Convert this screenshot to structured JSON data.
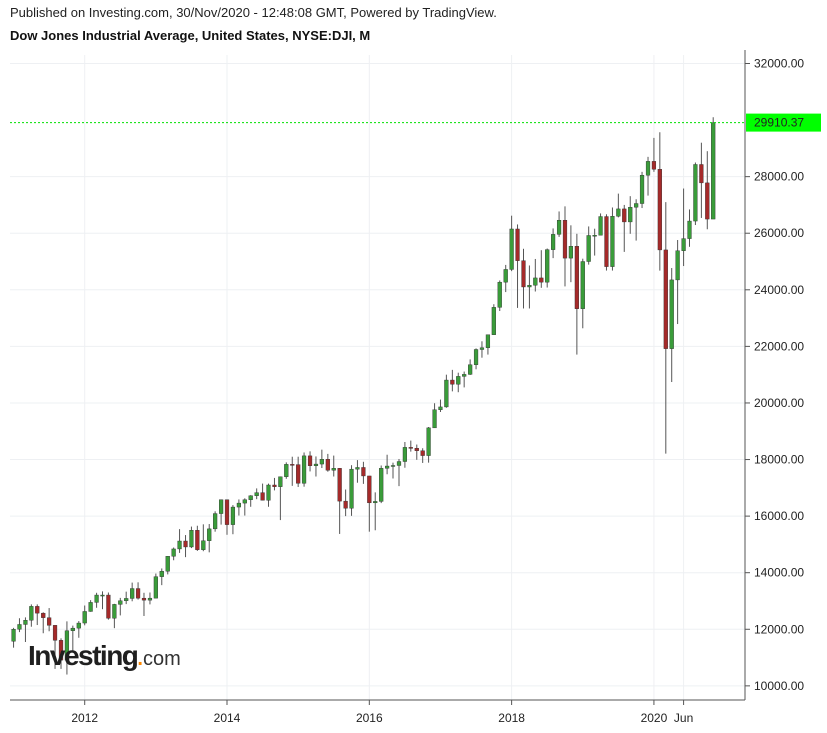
{
  "header": {
    "published": "Published on Investing.com, 30/Nov/2020 - 12:48:08 GMT, Powered by TradingView.",
    "title": "Dow Jones Industrial Average, United States, NYSE:DJI, M"
  },
  "logo": {
    "main": "Investing",
    "dot": ".",
    "suffix": "com"
  },
  "colors": {
    "up": "#3a9c3a",
    "down": "#a52a2a",
    "price_line": "#00e000",
    "price_label_bg": "#00ff00",
    "wick": "#555555",
    "grid": "#eef0f3"
  },
  "chart_data": {
    "type": "candlestick",
    "title": "Dow Jones Industrial Average, United States, NYSE:DJI, M",
    "interval": "M",
    "y_ticks": [
      "32000.00",
      "28000.00",
      "26000.00",
      "24000.00",
      "22000.00",
      "20000.00",
      "18000.00",
      "16000.00",
      "14000.00",
      "12000.00",
      "10000.00"
    ],
    "y_tick_values": [
      32000,
      28000,
      26000,
      24000,
      22000,
      20000,
      18000,
      16000,
      14000,
      12000,
      10000
    ],
    "x_ticks": [
      "2012",
      "2014",
      "2016",
      "2018",
      "2020",
      "Jun"
    ],
    "x_tick_values": [
      2012.0,
      2014.0,
      2016.0,
      2018.0,
      2020.0,
      2020.417
    ],
    "ylim": [
      9500,
      32300
    ],
    "xlim": [
      2010.95,
      2021.28
    ],
    "last_price": 29910.37,
    "last_price_label": "29910.37",
    "grid": true,
    "candles": [
      [
        2011.0,
        11577,
        12000,
        11350,
        12050
      ],
      [
        2011.083,
        12000,
        12170,
        11900,
        12390
      ],
      [
        2011.167,
        12170,
        12320,
        11550,
        12420
      ],
      [
        2011.25,
        12320,
        12810,
        12090,
        12880
      ],
      [
        2011.333,
        12810,
        12570,
        12150,
        12880
      ],
      [
        2011.417,
        12570,
        12410,
        11860,
        12600
      ],
      [
        2011.5,
        12410,
        12140,
        11930,
        12750
      ],
      [
        2011.583,
        12140,
        11610,
        10600,
        12140
      ],
      [
        2011.667,
        11610,
        10910,
        10600,
        11680
      ],
      [
        2011.75,
        10910,
        11950,
        10400,
        12280
      ],
      [
        2011.833,
        11950,
        12040,
        11230,
        12130
      ],
      [
        2011.917,
        12040,
        12220,
        11700,
        12290
      ],
      [
        2012.0,
        12220,
        12630,
        12140,
        12840
      ],
      [
        2012.083,
        12630,
        12950,
        12620,
        13030
      ],
      [
        2012.167,
        12950,
        13210,
        12760,
        13290
      ],
      [
        2012.25,
        13210,
        13210,
        12710,
        13340
      ],
      [
        2012.333,
        13210,
        12390,
        12340,
        13300
      ],
      [
        2012.417,
        12390,
        12880,
        12040,
        12900
      ],
      [
        2012.5,
        12880,
        13010,
        12490,
        13110
      ],
      [
        2012.583,
        13010,
        13090,
        12890,
        13330
      ],
      [
        2012.667,
        13090,
        13440,
        12990,
        13650
      ],
      [
        2012.75,
        13440,
        13100,
        13050,
        13660
      ],
      [
        2012.833,
        13100,
        13030,
        12470,
        13290
      ],
      [
        2012.917,
        13030,
        13100,
        12880,
        13300
      ],
      [
        2013.0,
        13100,
        13860,
        13100,
        13970
      ],
      [
        2013.083,
        13860,
        14050,
        13560,
        14150
      ],
      [
        2013.167,
        14050,
        14580,
        13940,
        14590
      ],
      [
        2013.25,
        14580,
        14840,
        14440,
        14890
      ],
      [
        2013.333,
        14840,
        15120,
        14700,
        15540
      ],
      [
        2013.417,
        15120,
        14910,
        14550,
        15330
      ],
      [
        2013.5,
        14910,
        15500,
        14870,
        15630
      ],
      [
        2013.583,
        15500,
        14810,
        14770,
        15660
      ],
      [
        2013.667,
        14810,
        15130,
        14760,
        15710
      ],
      [
        2013.75,
        15130,
        15550,
        14720,
        15720
      ],
      [
        2013.833,
        15550,
        16090,
        15450,
        16170
      ],
      [
        2013.917,
        16090,
        16580,
        15700,
        16590
      ],
      [
        2014.0,
        16580,
        15700,
        15340,
        16590
      ],
      [
        2014.083,
        15700,
        16320,
        15360,
        16390
      ],
      [
        2014.167,
        16320,
        16460,
        16020,
        16590
      ],
      [
        2014.25,
        16460,
        16580,
        16020,
        16630
      ],
      [
        2014.333,
        16580,
        16720,
        16330,
        16740
      ],
      [
        2014.417,
        16720,
        16830,
        16600,
        16980
      ],
      [
        2014.5,
        16830,
        16560,
        16560,
        17150
      ],
      [
        2014.583,
        16560,
        17100,
        16330,
        17150
      ],
      [
        2014.667,
        17100,
        17040,
        16910,
        17350
      ],
      [
        2014.75,
        17040,
        17390,
        15860,
        17400
      ],
      [
        2014.833,
        17390,
        17830,
        17320,
        17900
      ],
      [
        2014.917,
        17830,
        17820,
        17070,
        18100
      ],
      [
        2015.0,
        17820,
        17160,
        17030,
        18100
      ],
      [
        2015.083,
        17160,
        18130,
        17040,
        18250
      ],
      [
        2015.167,
        18130,
        17780,
        17580,
        18290
      ],
      [
        2015.25,
        17780,
        17840,
        17400,
        18110
      ],
      [
        2015.333,
        17840,
        18010,
        17700,
        18350
      ],
      [
        2015.417,
        18010,
        17620,
        17570,
        18200
      ],
      [
        2015.5,
        17620,
        17690,
        17400,
        18140
      ],
      [
        2015.583,
        17690,
        16530,
        15370,
        17700
      ],
      [
        2015.667,
        16530,
        16280,
        16000,
        16940
      ],
      [
        2015.75,
        16280,
        17660,
        16010,
        17800
      ],
      [
        2015.833,
        17660,
        17720,
        17180,
        17980
      ],
      [
        2015.917,
        17720,
        17420,
        17140,
        17920
      ],
      [
        2016.0,
        17420,
        16470,
        15450,
        17420
      ],
      [
        2016.083,
        16470,
        16520,
        15500,
        16840
      ],
      [
        2016.167,
        16520,
        17690,
        16460,
        17790
      ],
      [
        2016.25,
        17690,
        17770,
        17480,
        18170
      ],
      [
        2016.333,
        17770,
        17790,
        17330,
        17890
      ],
      [
        2016.417,
        17790,
        17930,
        17060,
        18020
      ],
      [
        2016.5,
        17930,
        18430,
        17710,
        18620
      ],
      [
        2016.583,
        18430,
        18400,
        18280,
        18670
      ],
      [
        2016.667,
        18400,
        18310,
        17990,
        18530
      ],
      [
        2016.75,
        18310,
        18140,
        17880,
        18400
      ],
      [
        2016.833,
        18140,
        19120,
        17890,
        19150
      ],
      [
        2016.917,
        19120,
        19760,
        19120,
        19990
      ],
      [
        2017.0,
        19760,
        19860,
        19680,
        20120
      ],
      [
        2017.083,
        19860,
        20810,
        19830,
        21000
      ],
      [
        2017.167,
        20810,
        20660,
        20410,
        21170
      ],
      [
        2017.25,
        20660,
        20940,
        20380,
        21070
      ],
      [
        2017.333,
        20940,
        21010,
        20550,
        21110
      ],
      [
        2017.417,
        21010,
        21350,
        20990,
        21540
      ],
      [
        2017.5,
        21350,
        21890,
        21190,
        21930
      ],
      [
        2017.583,
        21890,
        21950,
        21600,
        22180
      ],
      [
        2017.667,
        21950,
        22410,
        21710,
        22420
      ],
      [
        2017.75,
        22410,
        23380,
        22410,
        23490
      ],
      [
        2017.833,
        23380,
        24270,
        23250,
        24330
      ],
      [
        2017.917,
        24270,
        24720,
        23920,
        24880
      ],
      [
        2018.0,
        24720,
        26150,
        24660,
        26620
      ],
      [
        2018.083,
        26150,
        25030,
        23360,
        26310
      ],
      [
        2018.167,
        25030,
        24100,
        23340,
        25450
      ],
      [
        2018.25,
        24100,
        24160,
        23340,
        24860
      ],
      [
        2018.333,
        24160,
        24420,
        23940,
        25090
      ],
      [
        2018.417,
        24420,
        24270,
        24070,
        25400
      ],
      [
        2018.5,
        24270,
        25420,
        24080,
        25460
      ],
      [
        2018.583,
        25420,
        25960,
        25120,
        26170
      ],
      [
        2018.667,
        25960,
        26460,
        25870,
        26770
      ],
      [
        2018.75,
        26460,
        25120,
        24120,
        26950
      ],
      [
        2018.833,
        25120,
        25540,
        24270,
        26280
      ],
      [
        2018.917,
        25540,
        23330,
        21710,
        25980
      ],
      [
        2019.0,
        23330,
        25000,
        22640,
        25100
      ],
      [
        2019.083,
        25000,
        25920,
        24890,
        26240
      ],
      [
        2019.167,
        25920,
        25930,
        25210,
        26160
      ],
      [
        2019.25,
        25930,
        26590,
        25950,
        26700
      ],
      [
        2019.333,
        26590,
        24820,
        24680,
        26670
      ],
      [
        2019.417,
        24820,
        26600,
        24680,
        26910
      ],
      [
        2019.5,
        26600,
        26860,
        26560,
        27400
      ],
      [
        2019.583,
        26860,
        26400,
        25340,
        27000
      ],
      [
        2019.667,
        26400,
        26920,
        25980,
        27310
      ],
      [
        2019.75,
        26920,
        27050,
        25740,
        27200
      ],
      [
        2019.833,
        27050,
        28050,
        26890,
        28170
      ],
      [
        2019.917,
        28050,
        28540,
        27330,
        28700
      ],
      [
        2020.0,
        28540,
        28260,
        28170,
        29370
      ],
      [
        2020.083,
        28260,
        25410,
        24680,
        29570
      ],
      [
        2020.167,
        25410,
        21920,
        18210,
        27100
      ],
      [
        2020.25,
        21920,
        24350,
        20740,
        24770
      ],
      [
        2020.333,
        24350,
        25380,
        22790,
        25760
      ],
      [
        2020.417,
        25380,
        25810,
        24840,
        27580
      ],
      [
        2020.5,
        25810,
        26430,
        25520,
        26840
      ],
      [
        2020.583,
        26430,
        28430,
        26290,
        28500
      ],
      [
        2020.667,
        28430,
        27780,
        26540,
        29200
      ],
      [
        2020.75,
        27780,
        26500,
        26140,
        28900
      ],
      [
        2020.833,
        26500,
        29910,
        26600,
        30100
      ]
    ]
  }
}
